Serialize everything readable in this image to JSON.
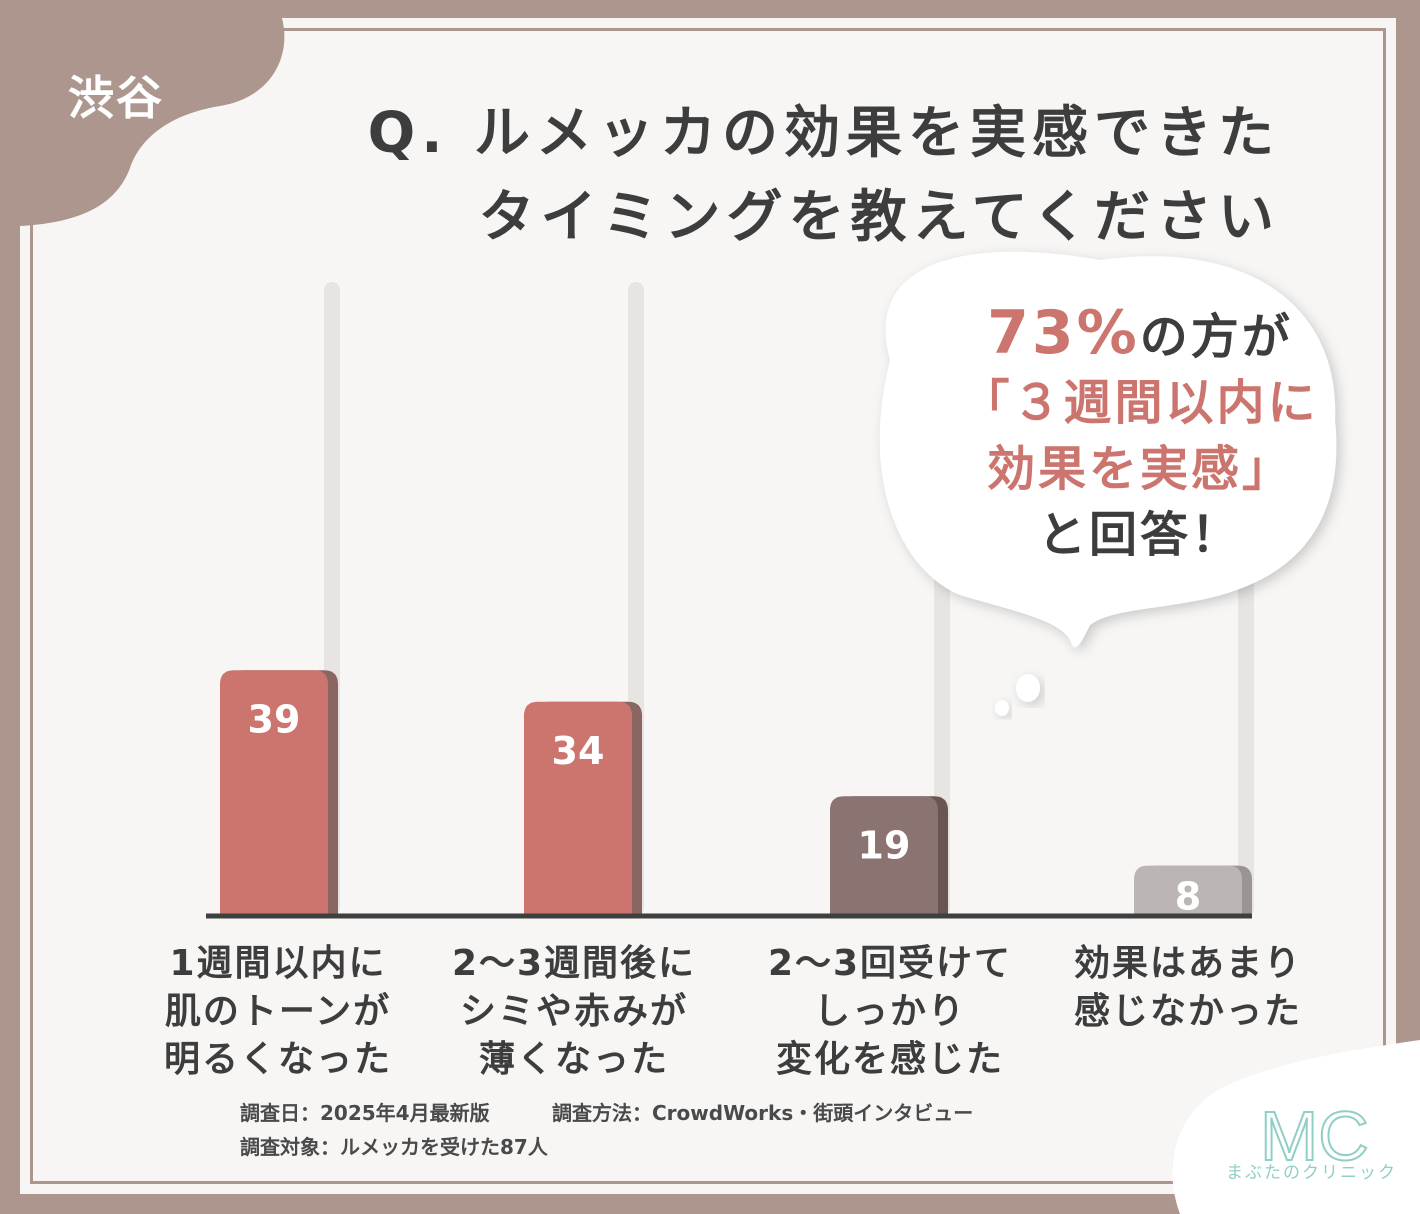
{
  "tag": "渋谷",
  "title": {
    "line1": "Q. ルメッカの効果を実感できた",
    "line2": "タイミングを教えてください"
  },
  "bubble": {
    "percent": "73%",
    "line1_suffix": "の方が",
    "line2": "「３週間以内に",
    "line3": "効果を実感」",
    "line4": "と回答！"
  },
  "chart_data": {
    "type": "bar",
    "categories": [
      [
        "1週間以内に",
        "肌のトーンが",
        "明るくなった"
      ],
      [
        "2〜3週間後に",
        "シミや赤みが",
        "薄くなった"
      ],
      [
        "2〜3回受けて",
        "しっかり",
        "変化を感じた"
      ],
      [
        "効果はあまり",
        "感じなかった"
      ]
    ],
    "values": [
      39,
      34,
      19,
      8
    ],
    "value_labels": [
      "39",
      "34",
      "19",
      "8"
    ],
    "bar_colors": [
      "#cc756f",
      "#cc756f",
      "#8a7370",
      "#bbb6b4"
    ],
    "shadow_colors": [
      "#8a6663",
      "#8a6663",
      "#6b5552",
      "#9a9593"
    ]
  },
  "notes": {
    "date": "調査日：2025年4月最新版",
    "method": "調査方法：CrowdWorks・街頭インタビュー",
    "target": "調査対象：ルメッカを受けた87人"
  },
  "logo": {
    "mark": "MC",
    "text": "まぶたのクリニック"
  },
  "colors": {
    "frame": "#ad968e",
    "accent": "#cc756f",
    "text": "#3d3d3d",
    "logo": "#8fcfc6"
  }
}
